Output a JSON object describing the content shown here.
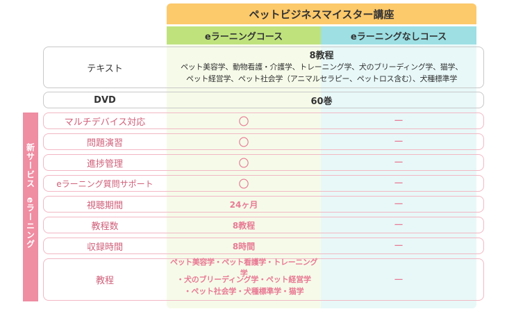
{
  "header": {
    "title": "ペットビジネスマイスター講座",
    "col_elearning": "eラーニングコース",
    "col_no_elearning": "eラーニングなしコース"
  },
  "rows": {
    "text": {
      "label": "テキスト",
      "count": "8教程",
      "detail_line1": "ペット美容学、動物看護・介護学、トレーニング学、犬のブリーディング学、猫学、",
      "detail_line2": "ペット経営学、ペット社会学（アニマルセラピー、ペットロス含む）、犬種標準学"
    },
    "dvd": {
      "label": "DVD",
      "value": "60巻"
    },
    "multidevice": {
      "label": "マルチデバイス対応",
      "elearning": "〇",
      "none": "ー"
    },
    "exercise": {
      "label": "問題演習",
      "elearning": "〇",
      "none": "ー"
    },
    "progress": {
      "label": "進捗管理",
      "elearning": "〇",
      "none": "ー"
    },
    "support": {
      "label": "eラーニング質問サポート",
      "elearning": "〇",
      "none": "ー"
    },
    "period": {
      "label": "視聴期間",
      "elearning": "24ヶ月",
      "none": "ー"
    },
    "courses": {
      "label": "教程数",
      "elearning": "8教程",
      "none": "ー"
    },
    "hours": {
      "label": "収録時間",
      "elearning": "8時間",
      "none": "ー"
    },
    "curriculum": {
      "label": "教程",
      "line1": "ペット美容学・ペット看護学・トレーニング学",
      "line2": "・犬のブリーディング学・ペット経営学",
      "line3": "・ペット社会学・犬種標準学・猫学",
      "none": "ー"
    }
  },
  "sidebar": {
    "label": "新サービス　eラーニング"
  },
  "colors": {
    "title_bg": "#fcc96b",
    "elearning_head": "#bfe27d",
    "no_elearning_head": "#9ddfe3",
    "accent_pink": "#ef8da3"
  }
}
